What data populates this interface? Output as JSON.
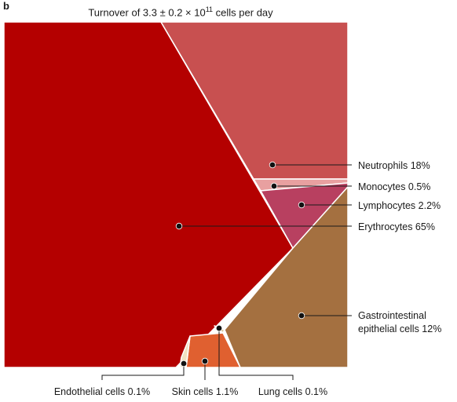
{
  "panel_label": "b",
  "title": {
    "prefix": "Turnover of 3.3 ± 0.2 × 10",
    "exponent": "11",
    "suffix": " cells per day"
  },
  "chart_data": {
    "type": "voronoi-treemap",
    "title": "Turnover of 3.3 ± 0.2 × 10^11 cells per day",
    "unit": "%",
    "slices": [
      {
        "name": "Neutrophils",
        "label": "Neutrophils 18%",
        "value": 18,
        "color": "#c85050"
      },
      {
        "name": "Monocytes",
        "label": "Monocytes 0.5%",
        "value": 0.5,
        "color": "#e8a0a0"
      },
      {
        "name": "Lymphocytes",
        "label": "Lymphocytes 2.2%",
        "value": 2.2,
        "color": "#b84060"
      },
      {
        "name": "Erythrocytes",
        "label": "Erythrocytes 65%",
        "value": 65,
        "color": "#b40000"
      },
      {
        "name": "Gastrointestinal epithelial cells",
        "label": [
          "Gastrointestinal",
          "epithelial cells 12%"
        ],
        "value": 12,
        "color": "#a47040"
      },
      {
        "name": "Lung cells",
        "label": "Lung cells 0.1%",
        "value": 0.1,
        "color": "#d8c8a0"
      },
      {
        "name": "Skin cells",
        "label": "Skin cells 1.1%",
        "value": 1.1,
        "color": "#e06030"
      },
      {
        "name": "Endothelial cells",
        "label": "Endothelial cells 0.1%",
        "value": 0.1,
        "color": "#f0e0c0"
      }
    ]
  }
}
